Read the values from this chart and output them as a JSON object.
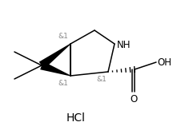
{
  "background": "#ffffff",
  "figsize": [
    2.21,
    1.68
  ],
  "dpi": 100,
  "hcl_text": "HCl",
  "nh_text": "NH",
  "oh_text": "OH",
  "o_text": "O",
  "stereo_label": "&1",
  "font_size_labels": 7.0,
  "font_size_hcl": 10,
  "lw": 1.1
}
